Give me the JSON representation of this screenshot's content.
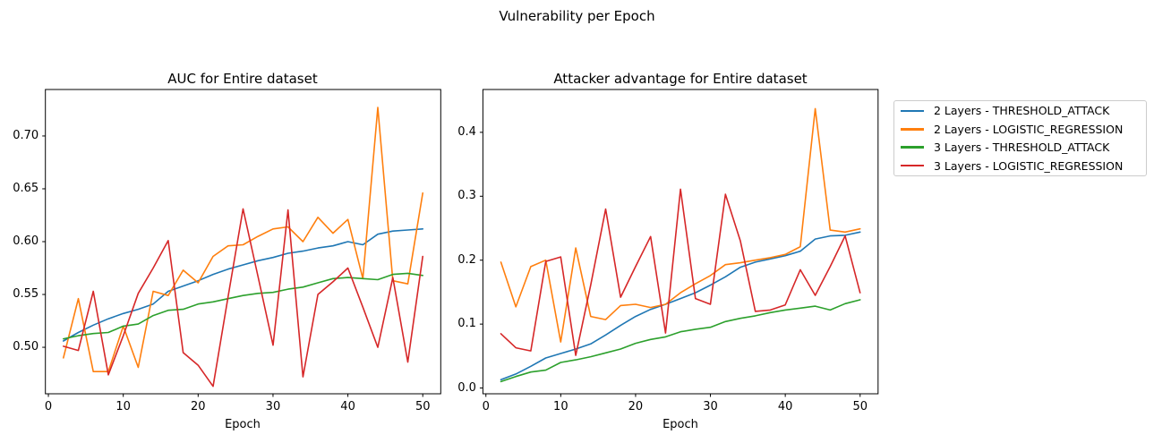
{
  "suptitle": "Vulnerability per Epoch",
  "colors": {
    "blue": "#1f77b4",
    "orange": "#ff7f0e",
    "green": "#2ca02c",
    "red": "#d62728",
    "spine": "#000000",
    "legend_border": "#cccccc"
  },
  "legend": {
    "items": [
      {
        "label": "2 Layers - THRESHOLD_ATTACK",
        "color": "#1f77b4"
      },
      {
        "label": "2 Layers - LOGISTIC_REGRESSION",
        "color": "#ff7f0e"
      },
      {
        "label": "3 Layers - THRESHOLD_ATTACK",
        "color": "#2ca02c"
      },
      {
        "label": "3 Layers - LOGISTIC_REGRESSION",
        "color": "#d62728"
      }
    ]
  },
  "chart_data": [
    {
      "type": "line",
      "title": "AUC for Entire dataset",
      "xlabel": "Epoch",
      "ylabel": "",
      "grid": false,
      "xlim": [
        -0.4,
        52.4
      ],
      "ylim": [
        0.456,
        0.744
      ],
      "x": [
        2,
        4,
        6,
        8,
        10,
        12,
        14,
        16,
        18,
        20,
        22,
        24,
        26,
        28,
        30,
        32,
        34,
        36,
        38,
        40,
        42,
        44,
        46,
        48,
        50
      ],
      "xticks": [
        {
          "v": 0,
          "label": "0"
        },
        {
          "v": 10,
          "label": "10"
        },
        {
          "v": 20,
          "label": "20"
        },
        {
          "v": 30,
          "label": "30"
        },
        {
          "v": 40,
          "label": "40"
        },
        {
          "v": 50,
          "label": "50"
        }
      ],
      "yticks": [
        {
          "v": 0.5,
          "label": "0.50"
        },
        {
          "v": 0.55,
          "label": "0.55"
        },
        {
          "v": 0.6,
          "label": "0.60"
        },
        {
          "v": 0.65,
          "label": "0.65"
        },
        {
          "v": 0.7,
          "label": "0.70"
        }
      ],
      "series": [
        {
          "name": "2 Layers - THRESHOLD_ATTACK",
          "color": "#1f77b4",
          "values": [
            0.506,
            0.514,
            0.521,
            0.527,
            0.532,
            0.536,
            0.541,
            0.553,
            0.558,
            0.563,
            0.569,
            0.574,
            0.578,
            0.582,
            0.585,
            0.589,
            0.591,
            0.594,
            0.596,
            0.6,
            0.597,
            0.607,
            0.61,
            0.611,
            0.612
          ]
        },
        {
          "name": "2 Layers - LOGISTIC_REGRESSION",
          "color": "#ff7f0e",
          "values": [
            0.49,
            0.546,
            0.477,
            0.477,
            0.52,
            0.481,
            0.553,
            0.549,
            0.573,
            0.561,
            0.586,
            0.596,
            0.597,
            0.605,
            0.612,
            0.614,
            0.6,
            0.623,
            0.608,
            0.621,
            0.565,
            0.727,
            0.563,
            0.56,
            0.646
          ]
        },
        {
          "name": "3 Layers - THRESHOLD_ATTACK",
          "color": "#2ca02c",
          "values": [
            0.508,
            0.511,
            0.513,
            0.514,
            0.52,
            0.522,
            0.53,
            0.535,
            0.536,
            0.541,
            0.543,
            0.546,
            0.549,
            0.551,
            0.552,
            0.555,
            0.557,
            0.561,
            0.565,
            0.566,
            0.565,
            0.564,
            0.569,
            0.57,
            0.568
          ]
        },
        {
          "name": "3 Layers - LOGISTIC_REGRESSION",
          "color": "#d62728",
          "values": [
            0.501,
            0.497,
            0.553,
            0.474,
            0.511,
            0.551,
            0.575,
            0.601,
            0.495,
            0.483,
            0.463,
            0.548,
            0.631,
            0.567,
            0.502,
            0.63,
            0.472,
            0.55,
            0.562,
            0.575,
            0.538,
            0.5,
            0.566,
            0.486,
            0.586
          ]
        }
      ]
    },
    {
      "type": "line",
      "title": "Attacker advantage for Entire dataset",
      "xlabel": "Epoch",
      "ylabel": "",
      "grid": false,
      "xlim": [
        -0.4,
        52.4
      ],
      "ylim": [
        -0.009,
        0.467
      ],
      "x": [
        2,
        4,
        6,
        8,
        10,
        12,
        14,
        16,
        18,
        20,
        22,
        24,
        26,
        28,
        30,
        32,
        34,
        36,
        38,
        40,
        42,
        44,
        46,
        48,
        50
      ],
      "xticks": [
        {
          "v": 0,
          "label": "0"
        },
        {
          "v": 10,
          "label": "10"
        },
        {
          "v": 20,
          "label": "20"
        },
        {
          "v": 30,
          "label": "30"
        },
        {
          "v": 40,
          "label": "40"
        },
        {
          "v": 50,
          "label": "50"
        }
      ],
      "yticks": [
        {
          "v": 0.0,
          "label": "0.0"
        },
        {
          "v": 0.1,
          "label": "0.1"
        },
        {
          "v": 0.2,
          "label": "0.2"
        },
        {
          "v": 0.3,
          "label": "0.3"
        },
        {
          "v": 0.4,
          "label": "0.4"
        }
      ],
      "series": [
        {
          "name": "2 Layers - THRESHOLD_ATTACK",
          "color": "#1f77b4",
          "values": [
            0.013,
            0.022,
            0.034,
            0.047,
            0.054,
            0.061,
            0.069,
            0.083,
            0.098,
            0.112,
            0.123,
            0.131,
            0.14,
            0.149,
            0.161,
            0.174,
            0.189,
            0.197,
            0.202,
            0.207,
            0.214,
            0.233,
            0.238,
            0.239,
            0.244
          ]
        },
        {
          "name": "2 Layers - LOGISTIC_REGRESSION",
          "color": "#ff7f0e",
          "values": [
            0.197,
            0.127,
            0.19,
            0.2,
            0.072,
            0.219,
            0.112,
            0.107,
            0.129,
            0.131,
            0.126,
            0.131,
            0.149,
            0.163,
            0.176,
            0.193,
            0.196,
            0.2,
            0.204,
            0.209,
            0.221,
            0.437,
            0.247,
            0.244,
            0.249
          ]
        },
        {
          "name": "3 Layers - THRESHOLD_ATTACK",
          "color": "#2ca02c",
          "values": [
            0.01,
            0.018,
            0.025,
            0.028,
            0.04,
            0.044,
            0.049,
            0.055,
            0.061,
            0.07,
            0.076,
            0.08,
            0.088,
            0.092,
            0.095,
            0.104,
            0.109,
            0.113,
            0.118,
            0.122,
            0.125,
            0.128,
            0.122,
            0.132,
            0.138
          ]
        },
        {
          "name": "3 Layers - LOGISTIC_REGRESSION",
          "color": "#d62728",
          "values": [
            0.085,
            0.063,
            0.058,
            0.198,
            0.205,
            0.051,
            0.161,
            0.28,
            0.142,
            0.19,
            0.237,
            0.086,
            0.311,
            0.14,
            0.131,
            0.303,
            0.23,
            0.12,
            0.122,
            0.13,
            0.185,
            0.145,
            0.19,
            0.238,
            0.149
          ]
        }
      ]
    }
  ]
}
